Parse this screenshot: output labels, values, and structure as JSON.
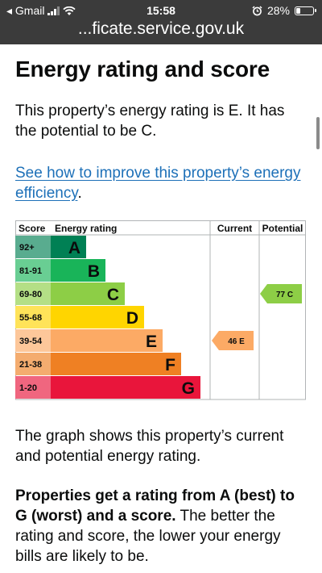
{
  "status_bar": {
    "carrier": "◂ Gmail",
    "time": "15:58",
    "battery": "28%",
    "battery_level": 0.28,
    "icons": [
      "signal-bars-icon",
      "wifi-icon",
      "alarm-icon",
      "battery-icon"
    ]
  },
  "browser": {
    "url": "...ficate.service.gov.uk"
  },
  "page": {
    "title": "Energy rating and score",
    "intro": "This property’s energy rating is E. It has the potential to be C.",
    "improve_link": "See how to improve this property’s energy efficiency",
    "improve_suffix": ".",
    "graph_description": "The graph shows this property’s current and potential energy rating.",
    "rating_bold": "Properties get a rating from A (best) to G (worst) and a score.",
    "rating_rest": " The better the rating and score, the lower your energy bills are likely to be."
  },
  "chart_data": {
    "type": "bar",
    "headers": {
      "score": "Score",
      "rating": "Energy rating",
      "current": "Current",
      "potential": "Potential"
    },
    "bands": [
      {
        "letter": "A",
        "range": "92+",
        "color": "#008054"
      },
      {
        "letter": "B",
        "range": "81-91",
        "color": "#19b459"
      },
      {
        "letter": "C",
        "range": "69-80",
        "color": "#8dce46"
      },
      {
        "letter": "D",
        "range": "55-68",
        "color": "#ffd500"
      },
      {
        "letter": "E",
        "range": "39-54",
        "color": "#fcaa65"
      },
      {
        "letter": "F",
        "range": "21-38",
        "color": "#ef8023"
      },
      {
        "letter": "G",
        "range": "1-20",
        "color": "#e9153b"
      }
    ],
    "current": {
      "score": 46,
      "band": "E",
      "label": "46 E"
    },
    "potential": {
      "score": 77,
      "band": "C",
      "label": "77 C"
    }
  }
}
